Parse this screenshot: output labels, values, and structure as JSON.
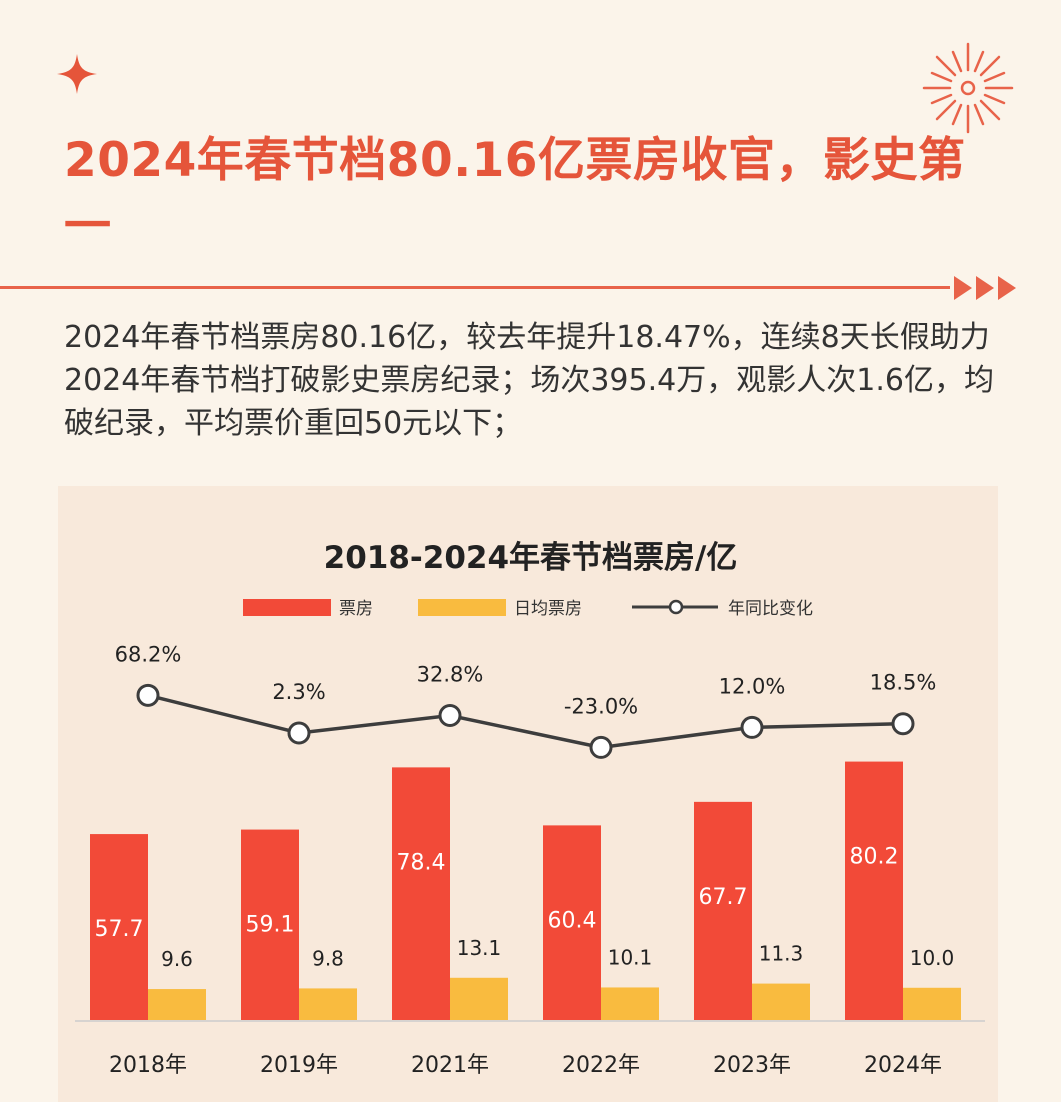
{
  "header": {
    "title": "2024年春节档80.16亿票房收官，影史第一",
    "intro": "2024年春节档票房80.16亿，较去年提升18.47%，连续8天长假助力2024年春节档打破影史票房纪录；场次395.4万，观影人次1.6亿，均破纪录，平均票价重回50元以下；"
  },
  "colors": {
    "accent": "#e5553a",
    "bar_box_office": "#f24a38",
    "bar_daily": "#f9bb3f",
    "line": "#3d3d3d",
    "background": "#fbf4ea",
    "chart_background": "#f8e9db"
  },
  "chart_data": {
    "type": "bar",
    "title": "2018-2024年春节档票房/亿",
    "categories": [
      "2018年",
      "2019年",
      "2021年",
      "2022年",
      "2023年",
      "2024年"
    ],
    "series": [
      {
        "name": "票房",
        "kind": "bar",
        "values": [
          57.7,
          59.1,
          78.4,
          60.4,
          67.7,
          80.2
        ],
        "labels": [
          "57.7",
          "59.1",
          "78.4",
          "60.4",
          "67.7",
          "80.2"
        ]
      },
      {
        "name": "日均票房",
        "kind": "bar",
        "values": [
          9.6,
          9.8,
          13.1,
          10.1,
          11.3,
          10.0
        ],
        "labels": [
          "9.6",
          "9.8",
          "13.1",
          "10.1",
          "11.3",
          "10.0"
        ]
      },
      {
        "name": "年同比变化",
        "kind": "line",
        "values": [
          68.2,
          2.3,
          32.8,
          -23.0,
          12.0,
          18.5
        ],
        "labels": [
          "68.2%",
          "2.3%",
          "32.8%",
          "-23.0%",
          "12.0%",
          "18.5%"
        ]
      }
    ],
    "legend": "top-center",
    "xlabel": "",
    "ylabel": "",
    "ylim": [
      0,
      90
    ],
    "y2lim": [
      -150,
      200
    ],
    "grid": false
  }
}
